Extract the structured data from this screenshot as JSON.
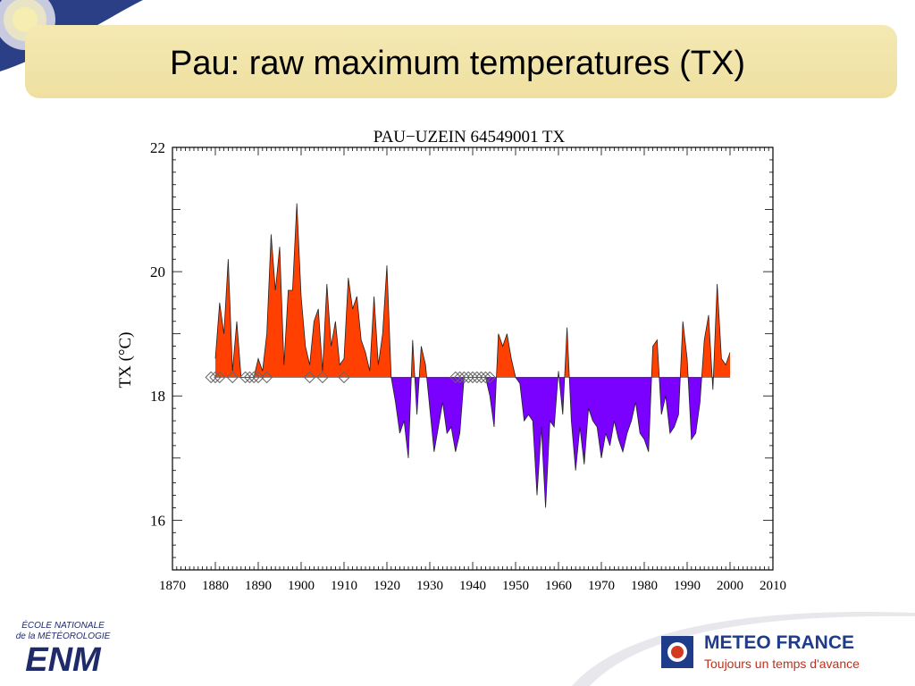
{
  "slide": {
    "title": "Pau: raw maximum temperatures (TX)"
  },
  "footer": {
    "enm_line1": "ÉCOLE NATIONALE",
    "enm_line2": "de la MÉTÉOROLOGIE",
    "enm_acronym": "ENM",
    "meteo_name": "METEO FRANCE",
    "meteo_tagline": "Toujours un temps d'avance"
  },
  "colors": {
    "above": "#ff4000",
    "below": "#7a00ff",
    "band": "#f2e6a8",
    "brand_blue": "#1e3c8a",
    "brand_red": "#c0301a"
  },
  "chart_data": {
    "type": "area",
    "title": "PAU−UZEIN 64549001 TX",
    "xlabel": "",
    "ylabel": "TX (°C)",
    "xlim": [
      1870,
      2010
    ],
    "ylim": [
      15.2,
      22
    ],
    "baseline": 18.3,
    "xticks": [
      1870,
      1880,
      1890,
      1900,
      1910,
      1920,
      1930,
      1940,
      1950,
      1960,
      1970,
      1980,
      1990,
      2000,
      2010
    ],
    "yticks": [
      16,
      18,
      20,
      22
    ],
    "series": [
      {
        "x": [
          1880,
          1881,
          1882,
          1883,
          1884,
          1885,
          1886,
          1887,
          1888,
          1889,
          1890,
          1891,
          1892,
          1893,
          1894,
          1895,
          1896,
          1897,
          1898,
          1899,
          1900,
          1901,
          1902,
          1903,
          1904,
          1905,
          1906,
          1907,
          1908,
          1909,
          1910,
          1911,
          1912,
          1913,
          1914,
          1915,
          1916,
          1917,
          1918,
          1919,
          1920,
          1921,
          1922,
          1923,
          1924,
          1925,
          1926,
          1927,
          1928,
          1929,
          1930,
          1931,
          1932,
          1933,
          1934,
          1935,
          1936,
          1937,
          1938,
          1939,
          1940,
          1941,
          1942,
          1943,
          1944,
          1945,
          1946,
          1947,
          1948,
          1949,
          1950,
          1951,
          1952,
          1953,
          1954,
          1955,
          1956,
          1957,
          1958,
          1959,
          1960,
          1961,
          1962,
          1963,
          1964,
          1965,
          1966,
          1967,
          1968,
          1969,
          1970,
          1971,
          1972,
          1973,
          1974,
          1975,
          1976,
          1977,
          1978,
          1979,
          1980,
          1981,
          1982,
          1983,
          1984,
          1985,
          1986,
          1987,
          1988,
          1989,
          1990,
          1991,
          1992,
          1993,
          1994,
          1995,
          1996,
          1997,
          1998,
          1999,
          2000
        ],
        "y": [
          18.6,
          19.5,
          19.0,
          20.2,
          18.4,
          19.2,
          18.3,
          18.3,
          18.3,
          18.3,
          18.6,
          18.4,
          19.0,
          20.6,
          19.7,
          20.4,
          18.5,
          19.7,
          19.7,
          21.1,
          19.6,
          18.8,
          18.5,
          19.2,
          19.4,
          18.4,
          19.8,
          18.8,
          19.2,
          18.5,
          18.6,
          19.9,
          19.4,
          19.6,
          18.9,
          18.7,
          18.4,
          19.6,
          18.5,
          19.0,
          20.1,
          18.3,
          17.9,
          17.4,
          17.6,
          17.0,
          18.9,
          17.7,
          18.8,
          18.5,
          17.8,
          17.1,
          17.5,
          17.9,
          17.4,
          17.5,
          17.1,
          17.4,
          18.3,
          18.3,
          18.3,
          18.3,
          18.3,
          18.3,
          18.0,
          17.5,
          19.0,
          18.8,
          19.0,
          18.6,
          18.3,
          18.2,
          17.6,
          17.7,
          17.6,
          16.4,
          17.5,
          16.2,
          17.6,
          17.5,
          18.4,
          17.7,
          19.1,
          17.6,
          16.8,
          17.5,
          16.9,
          17.8,
          17.6,
          17.5,
          17.0,
          17.4,
          17.2,
          17.6,
          17.3,
          17.1,
          17.4,
          17.6,
          17.9,
          17.4,
          17.3,
          17.1,
          18.8,
          18.9,
          17.7,
          18.0,
          17.4,
          17.5,
          17.7,
          19.2,
          18.6,
          17.3,
          17.4,
          17.9,
          18.9,
          19.3,
          18.1,
          19.8,
          18.6,
          18.5,
          18.7
        ]
      }
    ],
    "missing_markers": [
      1879,
      1880,
      1881,
      1884,
      1887,
      1888,
      1889,
      1890,
      1892,
      1902,
      1905,
      1910,
      1936,
      1937,
      1938,
      1939,
      1940,
      1941,
      1942,
      1943,
      1944
    ]
  }
}
